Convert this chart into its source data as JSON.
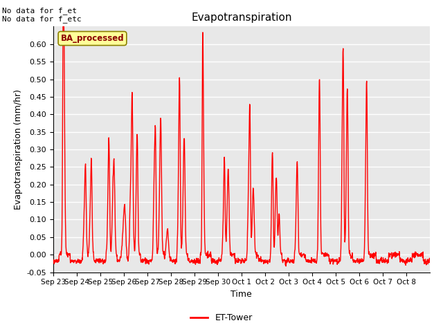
{
  "title": "Evapotranspiration",
  "xlabel": "Time",
  "ylabel": "Evapotranspiration (mm/hr)",
  "ylim": [
    -0.05,
    0.65
  ],
  "yticks": [
    -0.05,
    0.0,
    0.05,
    0.1,
    0.15,
    0.2,
    0.25,
    0.3,
    0.35,
    0.4,
    0.45,
    0.5,
    0.55,
    0.6
  ],
  "line_color": "#FF0000",
  "line_width": 1.0,
  "background_color": "#FFFFFF",
  "plot_bg_color": "#E8E8E8",
  "grid_color": "#FFFFFF",
  "text_top_left": "No data for f_et\nNo data for f_etc",
  "legend_label": "ET-Tower",
  "legend_box_color": "#FFFF99",
  "legend_box_edge": "#8B8000",
  "ba_label": "BA_processed",
  "xtick_labels": [
    "Sep 23",
    "Sep 24",
    "Sep 25",
    "Sep 26",
    "Sep 27",
    "Sep 28",
    "Sep 29",
    "Sep 30",
    "Oct 1",
    "Oct 2",
    "Oct 3",
    "Oct 4",
    "Oct 5",
    "Oct 6",
    "Oct 7",
    "Oct 8"
  ],
  "num_days": 16
}
